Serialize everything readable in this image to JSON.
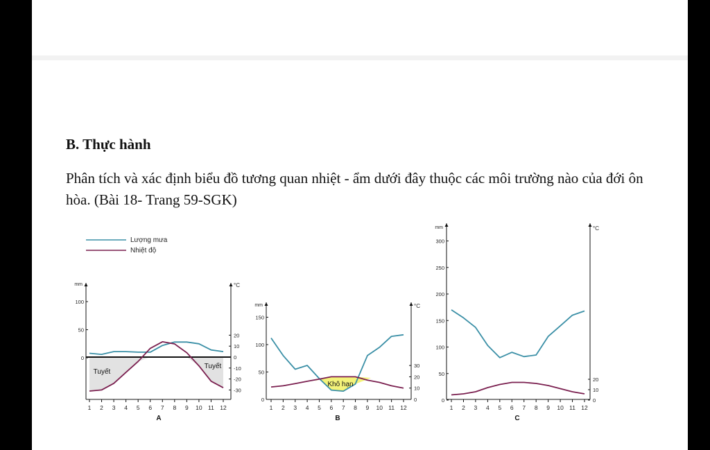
{
  "section_heading": "B. Thực hành",
  "question": "Phân tích và xác định biểu đồ tương quan nhiệt - ẩm dưới đây thuộc các môi trường nào của đới ôn hòa. (Bài 18- Trang 59-SGK)",
  "colors": {
    "rain": "#3a8fa6",
    "temp": "#7a1f4f",
    "snow_fill": "#e2e2e2",
    "dry_fill": "#f4f37a"
  },
  "legend": {
    "rain": "Lượng mưa",
    "temp": "Nhiệt độ"
  },
  "months": [
    "1",
    "2",
    "3",
    "4",
    "5",
    "6",
    "7",
    "8",
    "9",
    "10",
    "11",
    "12"
  ],
  "chart_data": [
    {
      "type": "line",
      "name": "A",
      "rain_unit": "mm",
      "temp_unit": "°C",
      "rain_ticks": [
        0,
        50,
        100
      ],
      "temp_ticks": [
        20,
        10,
        0,
        -10,
        -20,
        -30
      ],
      "rain_ylim": [
        0,
        100
      ],
      "temp_ylim": [
        -40,
        20
      ],
      "rain": [
        8,
        6,
        11,
        11,
        10,
        10,
        22,
        28,
        28,
        25,
        14,
        11
      ],
      "temp": [
        -31,
        -30,
        -24,
        -14,
        -4,
        8,
        14,
        12,
        4,
        -8,
        -22,
        -28
      ],
      "annotations": [
        "Tuyết",
        "Tuyết"
      ]
    },
    {
      "type": "line",
      "name": "B",
      "rain_unit": "mm",
      "temp_unit": "°C",
      "rain_ticks": [
        0,
        50,
        100,
        150
      ],
      "temp_ticks": [
        30,
        20,
        10,
        0
      ],
      "rain_ylim": [
        0,
        150
      ],
      "temp_ylim": [
        0,
        30
      ],
      "rain": [
        112,
        80,
        55,
        62,
        38,
        17,
        15,
        28,
        80,
        95,
        115,
        118
      ],
      "temp": [
        11,
        12,
        14,
        16,
        18,
        20,
        20,
        20,
        17,
        15,
        12,
        10
      ],
      "annotations": [
        "Khô hạn"
      ]
    },
    {
      "type": "line",
      "name": "C",
      "rain_unit": "mm",
      "temp_unit": "°C",
      "rain_ticks": [
        0,
        50,
        100,
        150,
        200,
        250,
        300
      ],
      "temp_ticks": [
        20,
        10,
        0
      ],
      "rain_ylim": [
        0,
        300
      ],
      "temp_ylim": [
        0,
        20
      ],
      "rain": [
        170,
        155,
        137,
        103,
        80,
        90,
        82,
        85,
        120,
        140,
        160,
        168
      ],
      "temp": [
        5,
        6,
        8,
        12,
        15,
        17,
        17,
        16,
        14,
        11,
        8,
        6
      ],
      "annotations": []
    }
  ]
}
